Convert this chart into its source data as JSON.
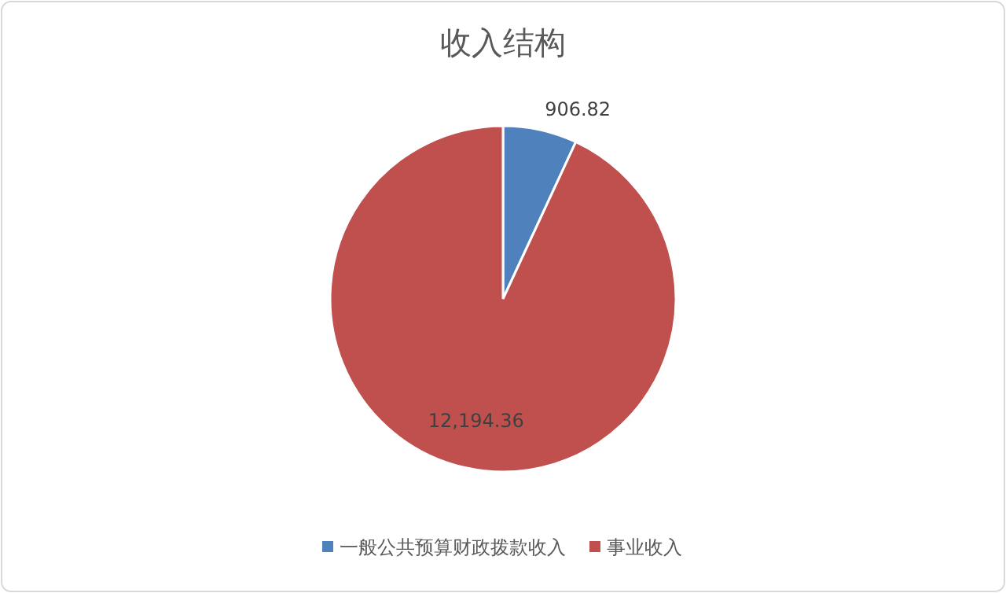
{
  "chart_data": {
    "type": "pie",
    "title": "收入结构",
    "categories": [
      "一般公共预算财政拨款收入",
      "事业收入"
    ],
    "values": [
      906.82,
      12194.36
    ],
    "value_labels": [
      "906.82",
      "12,194.36"
    ],
    "colors": [
      "#4f81bd",
      "#c0504d"
    ],
    "legend": "bottom"
  }
}
